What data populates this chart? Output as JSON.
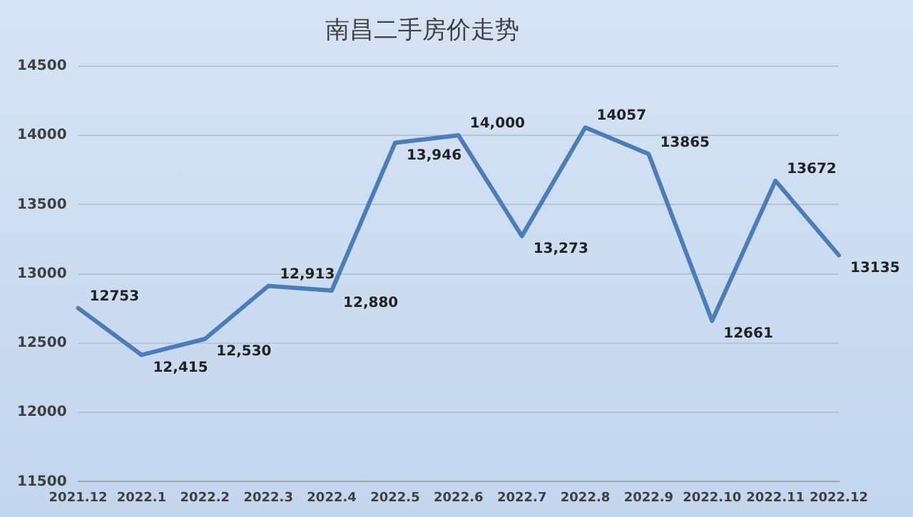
{
  "chart_data": {
    "type": "line",
    "title": "南昌二手房价走势",
    "categories": [
      "2021.12",
      "2022.1",
      "2022.2",
      "2022.3",
      "2022.4",
      "2022.5",
      "2022.6",
      "2022.7",
      "2022.8",
      "2022.9",
      "2022.10",
      "2022.11",
      "2022.12"
    ],
    "series": [
      {
        "color": "#4a7ebb",
        "values": [
          12753,
          12415,
          12530,
          12913,
          12880,
          13946,
          14000,
          13273,
          14057,
          13865,
          12661,
          13672,
          13135
        ],
        "value_labels": [
          "12753",
          "12,415",
          "12,530",
          "12,913",
          "12,880",
          "13,946",
          "14,000",
          "13,273",
          "14057",
          "13865",
          "12661",
          "13672",
          "13135"
        ]
      }
    ],
    "ylim": [
      11500,
      14500
    ],
    "yticks": [
      11500,
      12000,
      12500,
      13000,
      13500,
      14000,
      14500
    ],
    "grid": "y",
    "legend": false,
    "marker": "none",
    "line_style": "solid"
  }
}
